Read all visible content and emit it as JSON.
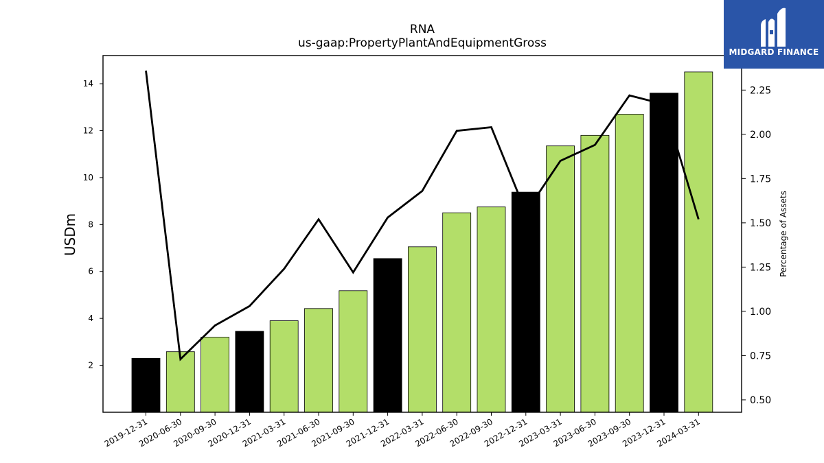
{
  "brand": {
    "name": "MIDGARD FINANCE",
    "bg_color": "#2a55a8"
  },
  "chart_data": {
    "type": "bar",
    "title": "RNA",
    "subtitle": "us-gaap:PropertyPlantAndEquipmentGross",
    "ylabel": "USDm",
    "ylabel_right": "Percentage of Assets",
    "categories": [
      "2019-12-31",
      "2020-06-30",
      "2020-09-30",
      "2020-12-31",
      "2021-03-31",
      "2021-06-30",
      "2021-09-30",
      "2021-12-31",
      "2022-03-31",
      "2022-06-30",
      "2022-09-30",
      "2022-12-31",
      "2023-03-31",
      "2023-06-30",
      "2023-09-30",
      "2023-12-31",
      "2024-03-31"
    ],
    "series": [
      {
        "type": "bar",
        "axis": "left",
        "values": [
          2.3,
          2.58,
          3.2,
          3.45,
          3.9,
          4.42,
          5.18,
          6.55,
          7.05,
          8.5,
          8.75,
          9.38,
          11.35,
          11.8,
          12.7,
          13.6,
          14.5
        ],
        "colors": [
          "#000000",
          "#b3de69",
          "#b3de69",
          "#000000",
          "#b3de69",
          "#b3de69",
          "#b3de69",
          "#000000",
          "#b3de69",
          "#b3de69",
          "#b3de69",
          "#000000",
          "#b3de69",
          "#b3de69",
          "#b3de69",
          "#000000",
          "#b3de69"
        ]
      },
      {
        "type": "line",
        "axis": "right",
        "color": "#000000",
        "values": [
          2.36,
          0.73,
          0.92,
          1.03,
          1.24,
          1.52,
          1.22,
          1.53,
          1.68,
          2.02,
          2.04,
          1.56,
          1.85,
          1.94,
          2.22,
          2.17,
          1.52
        ]
      }
    ],
    "yticks_left": [
      2,
      4,
      6,
      8,
      10,
      12,
      14
    ],
    "yticks_left_labels": [
      "2",
      "4",
      "6",
      "8",
      "10",
      "12",
      "14"
    ],
    "ylim_left": [
      0,
      15.2
    ],
    "yticks_right": [
      0.5,
      0.75,
      1.0,
      1.25,
      1.5,
      1.75,
      2.0,
      2.25
    ],
    "yticks_right_labels": [
      "0.50",
      "0.75",
      "1.00",
      "1.25",
      "1.50",
      "1.75",
      "2.00",
      "2.25"
    ],
    "ylim_right": [
      0.43,
      2.445
    ],
    "grid": false,
    "legend": "none"
  }
}
